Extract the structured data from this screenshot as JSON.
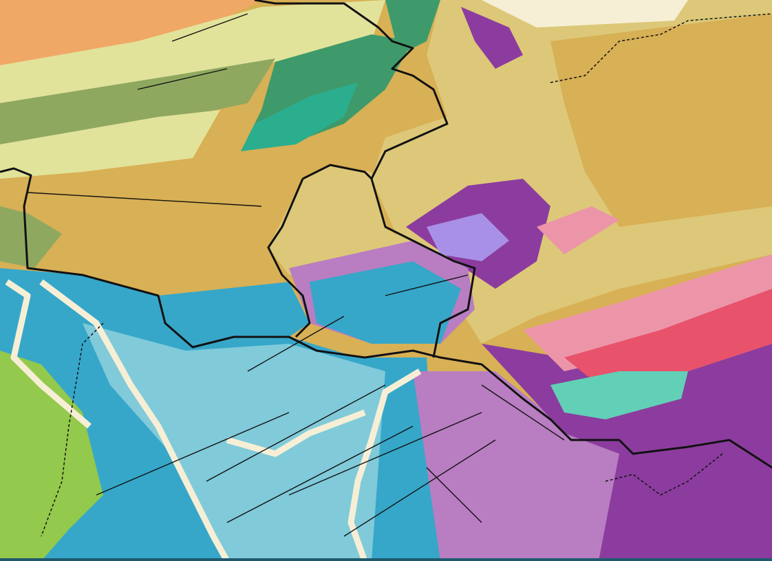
{
  "map": {
    "type": "geological map",
    "colors": {
      "tan": "#d8b055",
      "khaki": "#dcc878",
      "orange": "#f0a866",
      "light_yellow_green": "#e2e39a",
      "olive_green": "#8fa860",
      "dark_green": "#3e9a6a",
      "teal_green": "#2bae8e",
      "blue": "#36a7c9",
      "light_blue": "#80cada",
      "cream": "#f6efd6",
      "bright_green": "#93c94c",
      "purple": "#8c3c9e",
      "light_purple": "#b97dc2",
      "lavender": "#a890e8",
      "pink": "#ec95a8",
      "red": "#e8526b",
      "mint": "#62d0b6",
      "fault_line": "#111111",
      "border_line": "#111111",
      "bottom_bar": "#1d5a6e"
    }
  }
}
